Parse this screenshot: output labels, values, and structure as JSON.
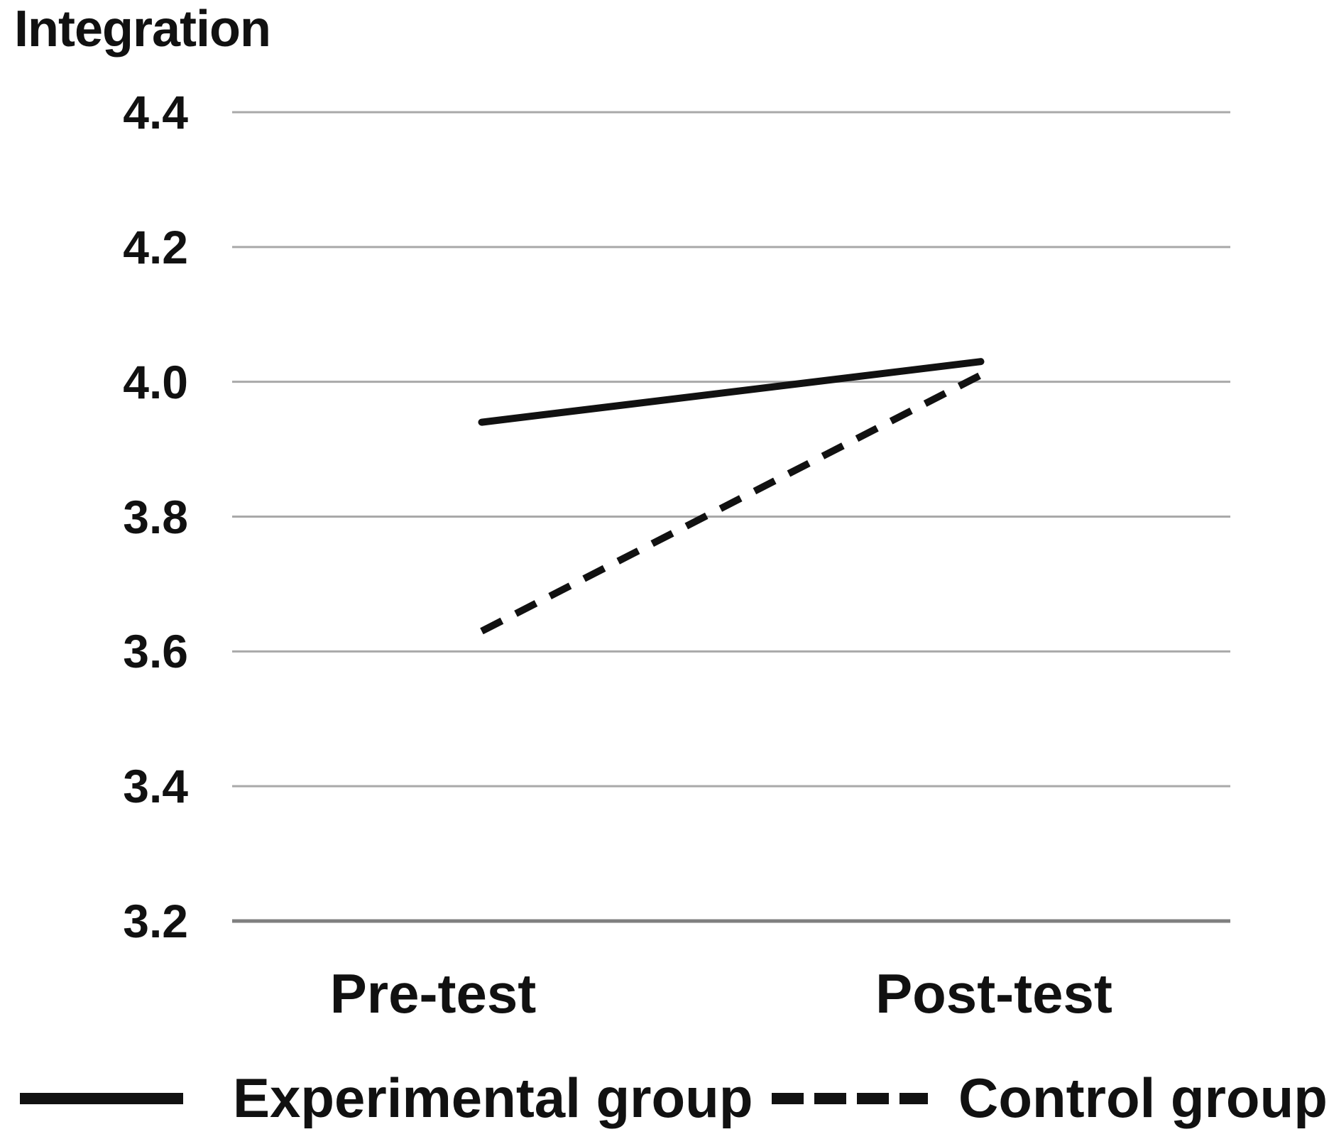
{
  "chart_data": {
    "type": "line",
    "title": "Integration",
    "categories": [
      "Pre-test",
      "Post-test"
    ],
    "series": [
      {
        "name": "Experimental group",
        "style": "solid",
        "values": [
          3.94,
          4.03
        ]
      },
      {
        "name": "Control group",
        "style": "dashed",
        "values": [
          3.63,
          4.01
        ]
      }
    ],
    "yticks": [
      "4.4",
      "4.2",
      "4.0",
      "3.8",
      "3.6",
      "3.4",
      "3.2"
    ],
    "ylim": [
      3.2,
      4.4
    ],
    "xlabel": "",
    "ylabel": "",
    "grid": true,
    "legend_position": "bottom",
    "colors": {
      "line": "#111111",
      "gridline": "#a9a9a9",
      "axis_line": "#7f7f7f",
      "text": "#111111",
      "background": "#ffffff"
    }
  }
}
